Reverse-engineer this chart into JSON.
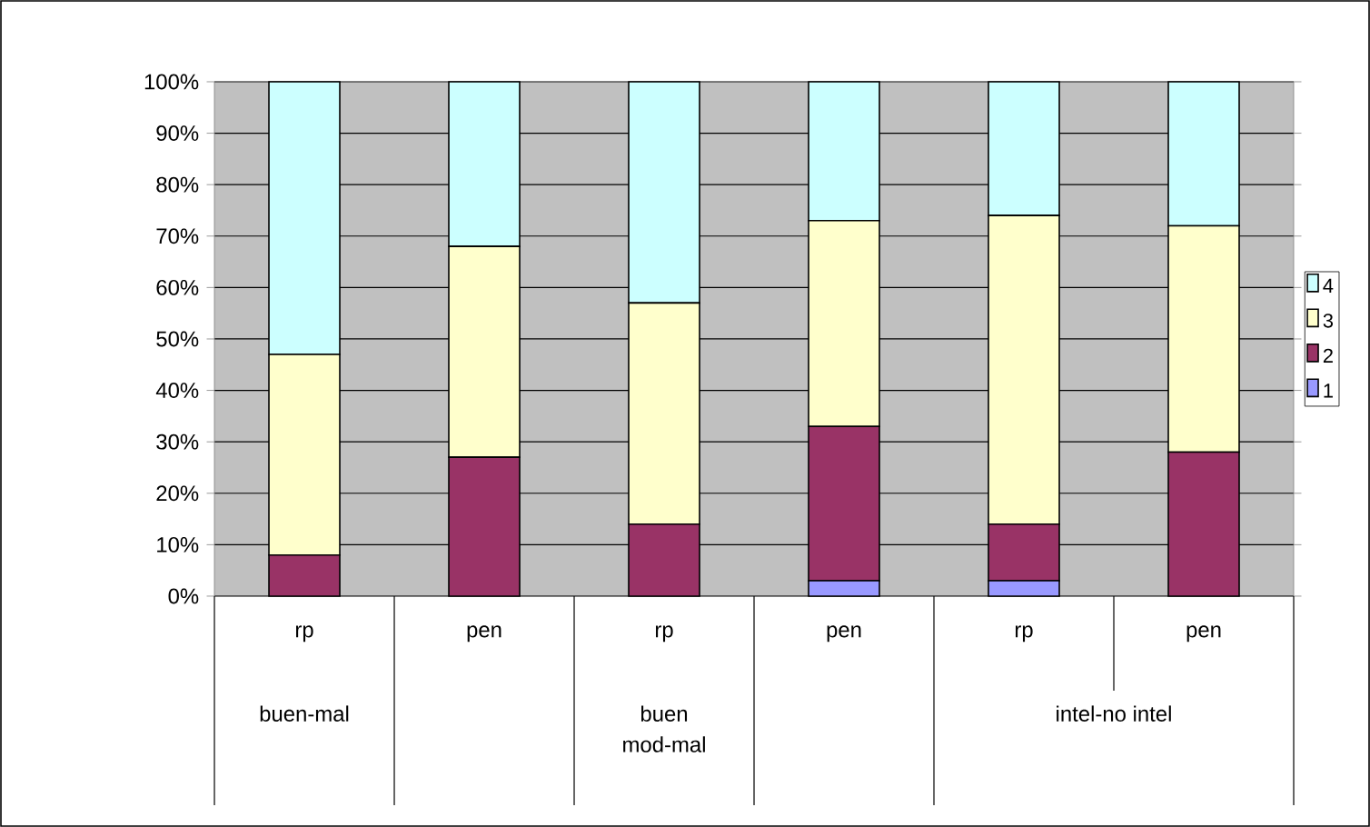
{
  "chart_data": {
    "type": "bar",
    "stacked": true,
    "categories": [
      "rp",
      "pen",
      "rp",
      "pen",
      "rp",
      "pen"
    ],
    "series": [
      {
        "name": "1",
        "color": "#9999ff",
        "values": [
          0,
          0,
          0,
          3,
          3,
          0
        ]
      },
      {
        "name": "2",
        "color": "#993366",
        "values": [
          8,
          27,
          14,
          30,
          11,
          28
        ]
      },
      {
        "name": "3",
        "color": "#ffffcc",
        "values": [
          39,
          41,
          43,
          40,
          60,
          44
        ]
      },
      {
        "name": "4",
        "color": "#ccffff",
        "values": [
          53,
          32,
          43,
          27,
          26,
          28
        ]
      }
    ],
    "ylim": [
      0,
      100
    ],
    "yticks": [
      {
        "value": 0,
        "label": "0%"
      },
      {
        "value": 10,
        "label": "10%"
      },
      {
        "value": 20,
        "label": "20%"
      },
      {
        "value": 30,
        "label": "30%"
      },
      {
        "value": 40,
        "label": "40%"
      },
      {
        "value": 50,
        "label": "50%"
      },
      {
        "value": 60,
        "label": "60%"
      },
      {
        "value": 70,
        "label": "70%"
      },
      {
        "value": 80,
        "label": "80%"
      },
      {
        "value": 90,
        "label": "90%"
      },
      {
        "value": 100,
        "label": "100%"
      }
    ],
    "grid": "y",
    "legend": "right",
    "annotations": [
      "buen-mal",
      "buen mod-mal",
      "intel-no intel"
    ]
  }
}
